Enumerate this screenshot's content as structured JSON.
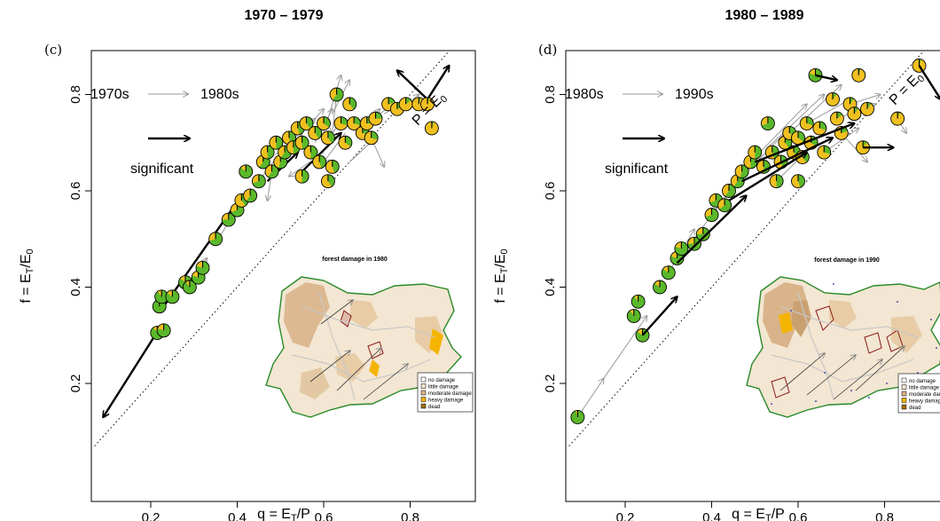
{
  "chart_data": [
    {
      "type": "scatter",
      "panel": "(c)",
      "title": "1970 – 1979",
      "xlabel": "q = E_T/P",
      "ylabel": "f = E_T/E_0",
      "xlim": [
        0.07,
        0.94
      ],
      "ylim": [
        0.07,
        0.94
      ],
      "xticks": [
        "0.2",
        "0.4",
        "0.6",
        "0.8"
      ],
      "yticks": [
        "0.2",
        "0.4",
        "0.6",
        "0.8"
      ],
      "diagonal_label": "P = E0",
      "legend": {
        "from": "1970s",
        "to": "1980s",
        "significant": "significant"
      },
      "inset": {
        "title": "forest damage in 1980",
        "legend": [
          "no damage",
          "little damage",
          "moderate damage",
          "heavy damage",
          "dead"
        ],
        "colors": [
          "#ffffff",
          "#f2e3cc",
          "#d9b48a",
          "#f5b400",
          "#a0700a"
        ]
      },
      "points": [
        {
          "q": 0.215,
          "f": 0.305,
          "g": 0.9
        },
        {
          "q": 0.23,
          "f": 0.31,
          "g": 0.8
        },
        {
          "q": 0.22,
          "f": 0.36,
          "g": 0.95
        },
        {
          "q": 0.225,
          "f": 0.38,
          "g": 0.9
        },
        {
          "q": 0.25,
          "f": 0.38,
          "g": 0.85
        },
        {
          "q": 0.28,
          "f": 0.41,
          "g": 0.85
        },
        {
          "q": 0.29,
          "f": 0.4,
          "g": 0.9
        },
        {
          "q": 0.31,
          "f": 0.42,
          "g": 0.8
        },
        {
          "q": 0.32,
          "f": 0.44,
          "g": 0.8
        },
        {
          "q": 0.35,
          "f": 0.5,
          "g": 0.7
        },
        {
          "q": 0.38,
          "f": 0.54,
          "g": 0.75
        },
        {
          "q": 0.4,
          "f": 0.56,
          "g": 0.7
        },
        {
          "q": 0.41,
          "f": 0.58,
          "g": 0.4
        },
        {
          "q": 0.42,
          "f": 0.64,
          "g": 0.85
        },
        {
          "q": 0.43,
          "f": 0.59,
          "g": 0.6
        },
        {
          "q": 0.45,
          "f": 0.62,
          "g": 0.7
        },
        {
          "q": 0.46,
          "f": 0.66,
          "g": 0.6
        },
        {
          "q": 0.47,
          "f": 0.68,
          "g": 0.5
        },
        {
          "q": 0.48,
          "f": 0.64,
          "g": 0.6
        },
        {
          "q": 0.49,
          "f": 0.7,
          "g": 0.5
        },
        {
          "q": 0.5,
          "f": 0.66,
          "g": 0.55
        },
        {
          "q": 0.51,
          "f": 0.68,
          "g": 0.6
        },
        {
          "q": 0.52,
          "f": 0.71,
          "g": 0.45
        },
        {
          "q": 0.53,
          "f": 0.69,
          "g": 0.5
        },
        {
          "q": 0.54,
          "f": 0.73,
          "g": 0.45
        },
        {
          "q": 0.55,
          "f": 0.7,
          "g": 0.5
        },
        {
          "q": 0.56,
          "f": 0.74,
          "g": 0.4
        },
        {
          "q": 0.57,
          "f": 0.68,
          "g": 0.5
        },
        {
          "q": 0.58,
          "f": 0.72,
          "g": 0.4
        },
        {
          "q": 0.59,
          "f": 0.66,
          "g": 0.45
        },
        {
          "q": 0.6,
          "f": 0.74,
          "g": 0.35
        },
        {
          "q": 0.61,
          "f": 0.71,
          "g": 0.4
        },
        {
          "q": 0.62,
          "f": 0.65,
          "g": 0.45
        },
        {
          "q": 0.63,
          "f": 0.8,
          "g": 0.6
        },
        {
          "q": 0.64,
          "f": 0.74,
          "g": 0.3
        },
        {
          "q": 0.65,
          "f": 0.7,
          "g": 0.35
        },
        {
          "q": 0.66,
          "f": 0.78,
          "g": 0.4
        },
        {
          "q": 0.67,
          "f": 0.74,
          "g": 0.3
        },
        {
          "q": 0.69,
          "f": 0.72,
          "g": 0.3
        },
        {
          "q": 0.7,
          "f": 0.74,
          "g": 0.25
        },
        {
          "q": 0.72,
          "f": 0.75,
          "g": 0.25
        },
        {
          "q": 0.75,
          "f": 0.78,
          "g": 0.2
        },
        {
          "q": 0.77,
          "f": 0.77,
          "g": 0.2
        },
        {
          "q": 0.79,
          "f": 0.78,
          "g": 0.15
        },
        {
          "q": 0.82,
          "f": 0.78,
          "g": 0.05
        },
        {
          "q": 0.84,
          "f": 0.78,
          "g": 0.05
        },
        {
          "q": 0.85,
          "f": 0.73,
          "g": 0.05
        },
        {
          "q": 0.61,
          "f": 0.62,
          "g": 0.4
        },
        {
          "q": 0.55,
          "f": 0.63,
          "g": 0.5
        },
        {
          "q": 0.71,
          "f": 0.71,
          "g": 0.3
        }
      ],
      "arrows": [
        {
          "x0": 0.21,
          "y0": 0.3,
          "x1": 0.09,
          "y1": 0.13,
          "s": true
        },
        {
          "x0": 0.23,
          "y0": 0.36,
          "x1": 0.41,
          "y1": 0.59,
          "s": true
        },
        {
          "x0": 0.47,
          "y0": 0.62,
          "x1": 0.54,
          "y1": 0.68,
          "s": true
        },
        {
          "x0": 0.55,
          "y0": 0.64,
          "x1": 0.64,
          "y1": 0.72,
          "s": true
        },
        {
          "x0": 0.84,
          "y0": 0.79,
          "x1": 0.77,
          "y1": 0.85,
          "s": true
        },
        {
          "x0": 0.84,
          "y0": 0.79,
          "x1": 0.89,
          "y1": 0.86,
          "s": true
        },
        {
          "x0": 0.28,
          "y0": 0.4,
          "x1": 0.33,
          "y1": 0.46,
          "s": false
        },
        {
          "x0": 0.35,
          "y0": 0.49,
          "x1": 0.39,
          "y1": 0.55,
          "s": false
        },
        {
          "x0": 0.45,
          "y0": 0.62,
          "x1": 0.5,
          "y1": 0.68,
          "s": false
        },
        {
          "x0": 0.5,
          "y0": 0.66,
          "x1": 0.55,
          "y1": 0.72,
          "s": false
        },
        {
          "x0": 0.52,
          "y0": 0.7,
          "x1": 0.58,
          "y1": 0.75,
          "s": false
        },
        {
          "x0": 0.55,
          "y0": 0.72,
          "x1": 0.6,
          "y1": 0.77,
          "s": false
        },
        {
          "x0": 0.58,
          "y0": 0.7,
          "x1": 0.62,
          "y1": 0.77,
          "s": false
        },
        {
          "x0": 0.6,
          "y0": 0.72,
          "x1": 0.64,
          "y1": 0.84,
          "s": false
        },
        {
          "x0": 0.62,
          "y0": 0.76,
          "x1": 0.66,
          "y1": 0.83,
          "s": false
        },
        {
          "x0": 0.6,
          "y0": 0.68,
          "x1": 0.52,
          "y1": 0.63,
          "s": false
        },
        {
          "x0": 0.65,
          "y0": 0.72,
          "x1": 0.6,
          "y1": 0.66,
          "s": false
        },
        {
          "x0": 0.68,
          "y0": 0.72,
          "x1": 0.73,
          "y1": 0.77,
          "s": false
        },
        {
          "x0": 0.7,
          "y0": 0.74,
          "x1": 0.76,
          "y1": 0.78,
          "s": false
        },
        {
          "x0": 0.74,
          "y0": 0.76,
          "x1": 0.8,
          "y1": 0.79,
          "s": false
        },
        {
          "x0": 0.78,
          "y0": 0.77,
          "x1": 0.82,
          "y1": 0.8,
          "s": false
        },
        {
          "x0": 0.63,
          "y0": 0.8,
          "x1": 0.62,
          "y1": 0.72,
          "s": false
        },
        {
          "x0": 0.66,
          "y0": 0.66,
          "x1": 0.72,
          "y1": 0.71,
          "s": false
        },
        {
          "x0": 0.48,
          "y0": 0.64,
          "x1": 0.47,
          "y1": 0.58,
          "s": false
        },
        {
          "x0": 0.71,
          "y0": 0.71,
          "x1": 0.74,
          "y1": 0.65,
          "s": false
        }
      ]
    },
    {
      "type": "scatter",
      "panel": "(d)",
      "title": "1980 – 1989",
      "xlabel": "q = E_T/P",
      "ylabel": "f = E_T/E_0",
      "xlim": [
        0.07,
        0.94
      ],
      "ylim": [
        0.07,
        0.94
      ],
      "xticks": [
        "0.2",
        "0.4",
        "0.6",
        "0.8"
      ],
      "yticks": [
        "0.2",
        "0.4",
        "0.6",
        "0.8"
      ],
      "diagonal_label": "P = E0",
      "legend": {
        "from": "1980s",
        "to": "1990s",
        "significant": "significant"
      },
      "inset": {
        "title": "forest damage in 1990",
        "legend": [
          "no damage",
          "little damage",
          "moderate damage",
          "heavy damage",
          "dead"
        ],
        "colors": [
          "#ffffff",
          "#f2e3cc",
          "#d9b48a",
          "#f5b400",
          "#a0700a"
        ]
      },
      "points": [
        {
          "q": 0.09,
          "f": 0.13,
          "g": 0.95
        },
        {
          "q": 0.22,
          "f": 0.34,
          "g": 0.9
        },
        {
          "q": 0.23,
          "f": 0.37,
          "g": 0.9
        },
        {
          "q": 0.24,
          "f": 0.3,
          "g": 0.85
        },
        {
          "q": 0.28,
          "f": 0.4,
          "g": 0.85
        },
        {
          "q": 0.3,
          "f": 0.43,
          "g": 0.85
        },
        {
          "q": 0.32,
          "f": 0.46,
          "g": 0.8
        },
        {
          "q": 0.33,
          "f": 0.48,
          "g": 0.8
        },
        {
          "q": 0.36,
          "f": 0.49,
          "g": 0.75
        },
        {
          "q": 0.38,
          "f": 0.51,
          "g": 0.75
        },
        {
          "q": 0.4,
          "f": 0.55,
          "g": 0.7
        },
        {
          "q": 0.41,
          "f": 0.58,
          "g": 0.7
        },
        {
          "q": 0.43,
          "f": 0.57,
          "g": 0.65
        },
        {
          "q": 0.44,
          "f": 0.6,
          "g": 0.6
        },
        {
          "q": 0.46,
          "f": 0.62,
          "g": 0.6
        },
        {
          "q": 0.47,
          "f": 0.64,
          "g": 0.55
        },
        {
          "q": 0.49,
          "f": 0.66,
          "g": 0.5
        },
        {
          "q": 0.5,
          "f": 0.68,
          "g": 0.5
        },
        {
          "q": 0.52,
          "f": 0.65,
          "g": 0.5
        },
        {
          "q": 0.53,
          "f": 0.74,
          "g": 0.7
        },
        {
          "q": 0.54,
          "f": 0.68,
          "g": 0.45
        },
        {
          "q": 0.55,
          "f": 0.62,
          "g": 0.5
        },
        {
          "q": 0.56,
          "f": 0.66,
          "g": 0.45
        },
        {
          "q": 0.57,
          "f": 0.7,
          "g": 0.4
        },
        {
          "q": 0.58,
          "f": 0.72,
          "g": 0.35
        },
        {
          "q": 0.59,
          "f": 0.68,
          "g": 0.4
        },
        {
          "q": 0.6,
          "f": 0.71,
          "g": 0.35
        },
        {
          "q": 0.61,
          "f": 0.67,
          "g": 0.4
        },
        {
          "q": 0.62,
          "f": 0.74,
          "g": 0.3
        },
        {
          "q": 0.63,
          "f": 0.7,
          "g": 0.35
        },
        {
          "q": 0.64,
          "f": 0.84,
          "g": 0.8
        },
        {
          "q": 0.65,
          "f": 0.73,
          "g": 0.3
        },
        {
          "q": 0.66,
          "f": 0.68,
          "g": 0.3
        },
        {
          "q": 0.68,
          "f": 0.79,
          "g": 0.1
        },
        {
          "q": 0.69,
          "f": 0.75,
          "g": 0.15
        },
        {
          "q": 0.7,
          "f": 0.72,
          "g": 0.2
        },
        {
          "q": 0.72,
          "f": 0.78,
          "g": 0.1
        },
        {
          "q": 0.73,
          "f": 0.76,
          "g": 0.1
        },
        {
          "q": 0.74,
          "f": 0.84,
          "g": 0.05
        },
        {
          "q": 0.75,
          "f": 0.69,
          "g": 0.1
        },
        {
          "q": 0.76,
          "f": 0.77,
          "g": 0.1
        },
        {
          "q": 0.83,
          "f": 0.75,
          "g": 0.05
        },
        {
          "q": 0.88,
          "f": 0.86,
          "g": 0.05
        },
        {
          "q": 0.6,
          "f": 0.62,
          "g": 0.45
        }
      ],
      "arrows": [
        {
          "x0": 0.24,
          "y0": 0.3,
          "x1": 0.32,
          "y1": 0.38,
          "s": true
        },
        {
          "x0": 0.32,
          "y0": 0.45,
          "x1": 0.48,
          "y1": 0.59,
          "s": true
        },
        {
          "x0": 0.44,
          "y0": 0.58,
          "x1": 0.62,
          "y1": 0.68,
          "s": true
        },
        {
          "x0": 0.47,
          "y0": 0.62,
          "x1": 0.68,
          "y1": 0.71,
          "s": true
        },
        {
          "x0": 0.5,
          "y0": 0.66,
          "x1": 0.73,
          "y1": 0.74,
          "s": true
        },
        {
          "x0": 0.64,
          "y0": 0.84,
          "x1": 0.69,
          "y1": 0.83,
          "s": true
        },
        {
          "x0": 0.75,
          "y0": 0.69,
          "x1": 0.82,
          "y1": 0.69,
          "s": true
        },
        {
          "x0": 0.88,
          "y0": 0.86,
          "x1": 0.93,
          "y1": 0.79,
          "s": true
        },
        {
          "x0": 0.09,
          "y0": 0.13,
          "x1": 0.15,
          "y1": 0.21,
          "s": false
        },
        {
          "x0": 0.15,
          "y0": 0.21,
          "x1": 0.25,
          "y1": 0.34,
          "s": false
        },
        {
          "x0": 0.3,
          "y0": 0.43,
          "x1": 0.36,
          "y1": 0.52,
          "s": false
        },
        {
          "x0": 0.36,
          "y0": 0.5,
          "x1": 0.44,
          "y1": 0.6,
          "s": false
        },
        {
          "x0": 0.4,
          "y0": 0.55,
          "x1": 0.5,
          "y1": 0.66,
          "s": false
        },
        {
          "x0": 0.46,
          "y0": 0.62,
          "x1": 0.58,
          "y1": 0.73,
          "s": false
        },
        {
          "x0": 0.49,
          "y0": 0.66,
          "x1": 0.62,
          "y1": 0.78,
          "s": false
        },
        {
          "x0": 0.53,
          "y0": 0.69,
          "x1": 0.66,
          "y1": 0.8,
          "s": false
        },
        {
          "x0": 0.55,
          "y0": 0.62,
          "x1": 0.64,
          "y1": 0.7,
          "s": false
        },
        {
          "x0": 0.58,
          "y0": 0.72,
          "x1": 0.7,
          "y1": 0.82,
          "s": false
        },
        {
          "x0": 0.62,
          "y0": 0.74,
          "x1": 0.72,
          "y1": 0.79,
          "s": false
        },
        {
          "x0": 0.66,
          "y0": 0.68,
          "x1": 0.74,
          "y1": 0.73,
          "s": false
        },
        {
          "x0": 0.69,
          "y0": 0.75,
          "x1": 0.78,
          "y1": 0.78,
          "s": false
        },
        {
          "x0": 0.83,
          "y0": 0.75,
          "x1": 0.85,
          "y1": 0.72,
          "s": false
        },
        {
          "x0": 0.72,
          "y0": 0.78,
          "x1": 0.79,
          "y1": 0.8,
          "s": false
        },
        {
          "x0": 0.7,
          "y0": 0.72,
          "x1": 0.76,
          "y1": 0.66,
          "s": false
        }
      ]
    }
  ]
}
